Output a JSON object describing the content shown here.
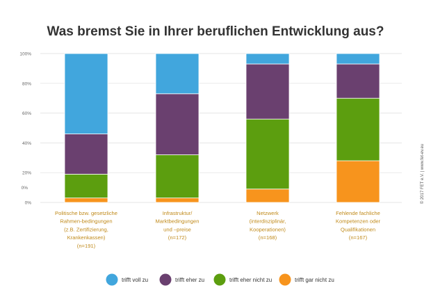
{
  "chart_data": {
    "type": "bar",
    "stacked": true,
    "title": "Was bremst Sie in Ihrer beruflichen Entwicklung aus?",
    "yticks": [
      "0%",
      "20%",
      "40%",
      "60%",
      "80%",
      "100%"
    ],
    "y_extra_label": "0%",
    "ylim": [
      0,
      100
    ],
    "categories": [
      [
        "Politische bzw. gesetzliche",
        "Rahmen-bedingungen",
        "(z.B. Zertifizierung,",
        "Krankenkassen)",
        "(n=191)"
      ],
      [
        "Infrastruktur/",
        "Marktbedingungen",
        "und –preise",
        "(n=172)"
      ],
      [
        "Netzwerk",
        "(interdisziplinär,",
        "Kooperationen)",
        "(n=168)"
      ],
      [
        "Fehlende fachliche",
        "Kompetenzen oder",
        "Qualifikationen",
        "(n=167)"
      ]
    ],
    "series": [
      {
        "name": "trifft gar nicht zu",
        "color": "#f7941d",
        "values": [
          3,
          3,
          9,
          28
        ]
      },
      {
        "name": "trifft eher nicht zu",
        "color": "#5c9e0f",
        "values": [
          16,
          29,
          47,
          42
        ]
      },
      {
        "name": "trifft eher zu",
        "color": "#6a406f",
        "values": [
          27,
          41,
          37,
          23
        ]
      },
      {
        "name": "trifft voll zu",
        "color": "#41a6dd",
        "values": [
          54,
          27,
          7,
          7
        ]
      }
    ],
    "legend_order": [
      "trifft voll zu",
      "trifft eher zu",
      "trifft eher nicht zu",
      "trifft gar nicht zu"
    ],
    "legend_position": "bottom",
    "grid": true
  },
  "credit": "© 2017 FET e.V. | www.fet-ev.eu"
}
